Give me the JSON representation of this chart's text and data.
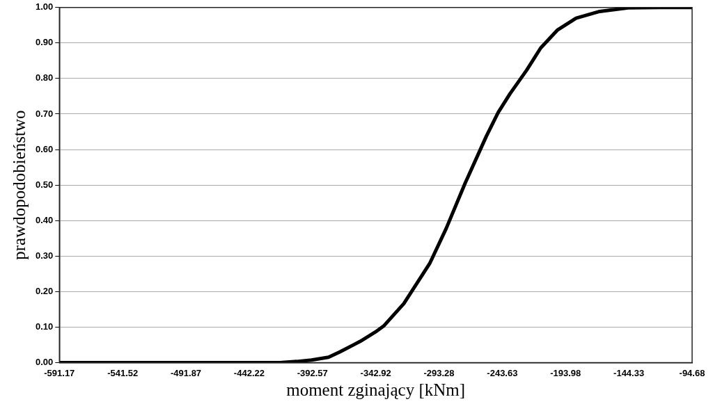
{
  "chart_data": {
    "type": "line",
    "xlabel": "moment zginający [kNm]",
    "ylabel": "prawdopodobieństwo",
    "series": [
      {
        "color": "#000000",
        "x": [
          -591.17,
          -500,
          -440,
          -418,
          -405,
          -393.2,
          -380,
          -371.0,
          -355,
          -343.2,
          -336.7,
          -320.9,
          -300.6,
          -287.6,
          -272.8,
          -256.2,
          -246.9,
          -237.6,
          -224.6,
          -213.5,
          -200.5,
          -185.7,
          -167.2,
          -144.9,
          -120,
          -94.68
        ],
        "values": [
          0,
          0,
          0,
          0,
          0.003,
          0.007,
          0.015,
          0.03,
          0.06,
          0.086,
          0.103,
          0.166,
          0.279,
          0.378,
          0.505,
          0.637,
          0.704,
          0.757,
          0.823,
          0.886,
          0.936,
          0.97,
          0.989,
          0.999,
          1.0,
          1.0
        ]
      }
    ],
    "xlim": [
      -591.17,
      -94.68
    ],
    "xticks": [
      -591.17,
      -541.52,
      -491.87,
      -442.22,
      -392.57,
      -342.92,
      -293.28,
      -243.63,
      -193.98,
      -144.33,
      -94.68
    ],
    "ylim": [
      0,
      1
    ],
    "yticks": [
      {
        "value": 0,
        "label": "0.00"
      },
      {
        "value": 0.1,
        "label": "0.10"
      },
      {
        "value": 0.2,
        "label": "0.20"
      },
      {
        "value": 0.3,
        "label": "0.30"
      },
      {
        "value": 0.4,
        "label": "0.40"
      },
      {
        "value": 0.5,
        "label": "0.50"
      },
      {
        "value": 0.6,
        "label": "0.60"
      },
      {
        "value": 0.7,
        "label": "0.70"
      },
      {
        "value": 0.8,
        "label": "0.80"
      },
      {
        "value": 0.9,
        "label": "0.90"
      },
      {
        "value": 1,
        "label": "1.00"
      }
    ],
    "grid": "y",
    "legend": false,
    "marker": "none",
    "line_style": "solid"
  }
}
